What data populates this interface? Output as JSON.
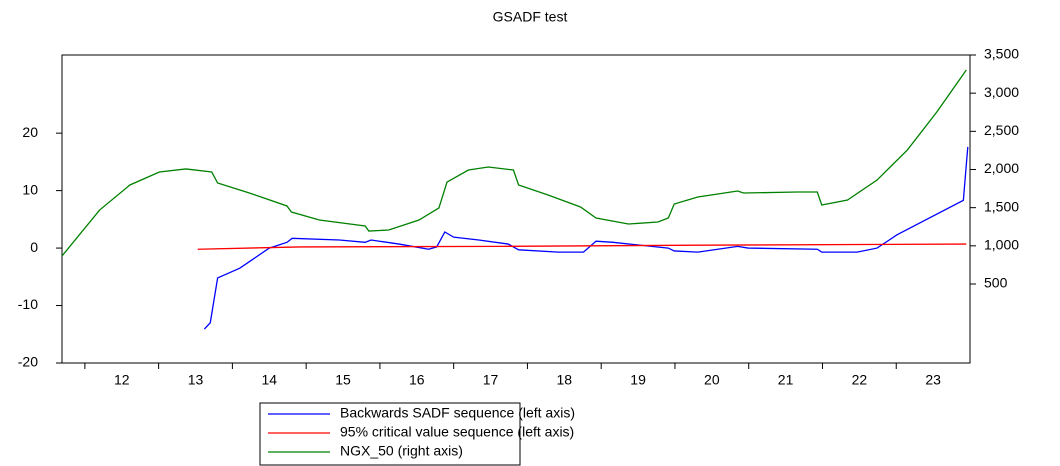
{
  "chart_data": {
    "type": "line",
    "title": "GSADF test",
    "xlim": [
      2011.69,
      2024.0
    ],
    "xticks": [
      {
        "value": 2012,
        "label": "12"
      },
      {
        "value": 2013,
        "label": "13"
      },
      {
        "value": 2014,
        "label": "14"
      },
      {
        "value": 2015,
        "label": "15"
      },
      {
        "value": 2016,
        "label": "16"
      },
      {
        "value": 2017,
        "label": "17"
      },
      {
        "value": 2018,
        "label": "18"
      },
      {
        "value": 2019,
        "label": "19"
      },
      {
        "value": 2020,
        "label": "20"
      },
      {
        "value": 2021,
        "label": "21"
      },
      {
        "value": 2022,
        "label": "22"
      },
      {
        "value": 2023,
        "label": "23"
      }
    ],
    "ylim": [
      -20,
      33.6
    ],
    "yticks": [
      -20,
      -10,
      0,
      10,
      20
    ],
    "y2lim": [
      -535,
      3500
    ],
    "y2ticks": [
      {
        "value": 500,
        "label": "500"
      },
      {
        "value": 1000,
        "label": "1,000"
      },
      {
        "value": 1500,
        "label": "1,500"
      },
      {
        "value": 2000,
        "label": "2,000"
      },
      {
        "value": 2500,
        "label": "2,500"
      },
      {
        "value": 3000,
        "label": "3,000"
      },
      {
        "value": 3500,
        "label": "3,500"
      }
    ],
    "series": [
      {
        "name": "Backwards SADF sequence (left axis)",
        "color": "#0000ff",
        "axis": "y",
        "x": [
          2013.62,
          2013.7,
          2013.8,
          2014.1,
          2014.5,
          2014.74,
          2014.81,
          2015.45,
          2015.8,
          2015.88,
          2016.26,
          2016.66,
          2016.77,
          2016.88,
          2017.0,
          2017.34,
          2017.74,
          2017.88,
          2018.42,
          2018.76,
          2018.93,
          2019.16,
          2019.91,
          2019.99,
          2020.31,
          2020.85,
          2020.99,
          2021.93,
          2021.99,
          2022.47,
          2022.74,
          2023.01,
          2023.91,
          2023.97
        ],
        "values": [
          -14.1,
          -13,
          -5.2,
          -3.5,
          0,
          1,
          1.7,
          1.4,
          1.0,
          1.4,
          0.7,
          -0.2,
          0.2,
          2.8,
          1.9,
          1.4,
          0.7,
          -0.3,
          -0.7,
          -0.7,
          1.2,
          1.0,
          0,
          -0.5,
          -0.7,
          0.3,
          0,
          -0.2,
          -0.7,
          -0.7,
          0,
          2.3,
          8.3,
          17.6
        ]
      },
      {
        "name": "95% critical value sequence (left axis)",
        "color": "#ff0000",
        "axis": "y",
        "x": [
          2013.53,
          2014.91,
          2017.61,
          2020.31,
          2023.95
        ],
        "values": [
          -0.2,
          0.2,
          0.3,
          0.5,
          0.7
        ]
      },
      {
        "name": "NGX_50 (right axis)",
        "color": "#008000",
        "axis": "y2",
        "x": [
          2011.69,
          2012.2,
          2012.61,
          2013.01,
          2013.37,
          2013.72,
          2013.8,
          2014.23,
          2014.74,
          2014.8,
          2015.18,
          2015.8,
          2015.85,
          2016.12,
          2016.53,
          2016.8,
          2016.91,
          2017.2,
          2017.47,
          2017.81,
          2017.88,
          2018.28,
          2018.72,
          2018.93,
          2019.37,
          2019.77,
          2019.91,
          2019.99,
          2020.31,
          2020.85,
          2020.93,
          2021.66,
          2021.93,
          2021.99,
          2022.34,
          2022.74,
          2023.15,
          2023.55,
          2023.95
        ],
        "values": [
          867,
          1469,
          1797,
          1967,
          2007,
          1967,
          1823,
          1692,
          1522,
          1443,
          1338,
          1260,
          1194,
          1207,
          1338,
          1496,
          1836,
          1993,
          2033,
          1993,
          1797,
          1666,
          1509,
          1365,
          1286,
          1312,
          1365,
          1548,
          1640,
          1718,
          1692,
          1705,
          1705,
          1535,
          1600,
          1862,
          2255,
          2753,
          3303
        ]
      }
    ]
  }
}
